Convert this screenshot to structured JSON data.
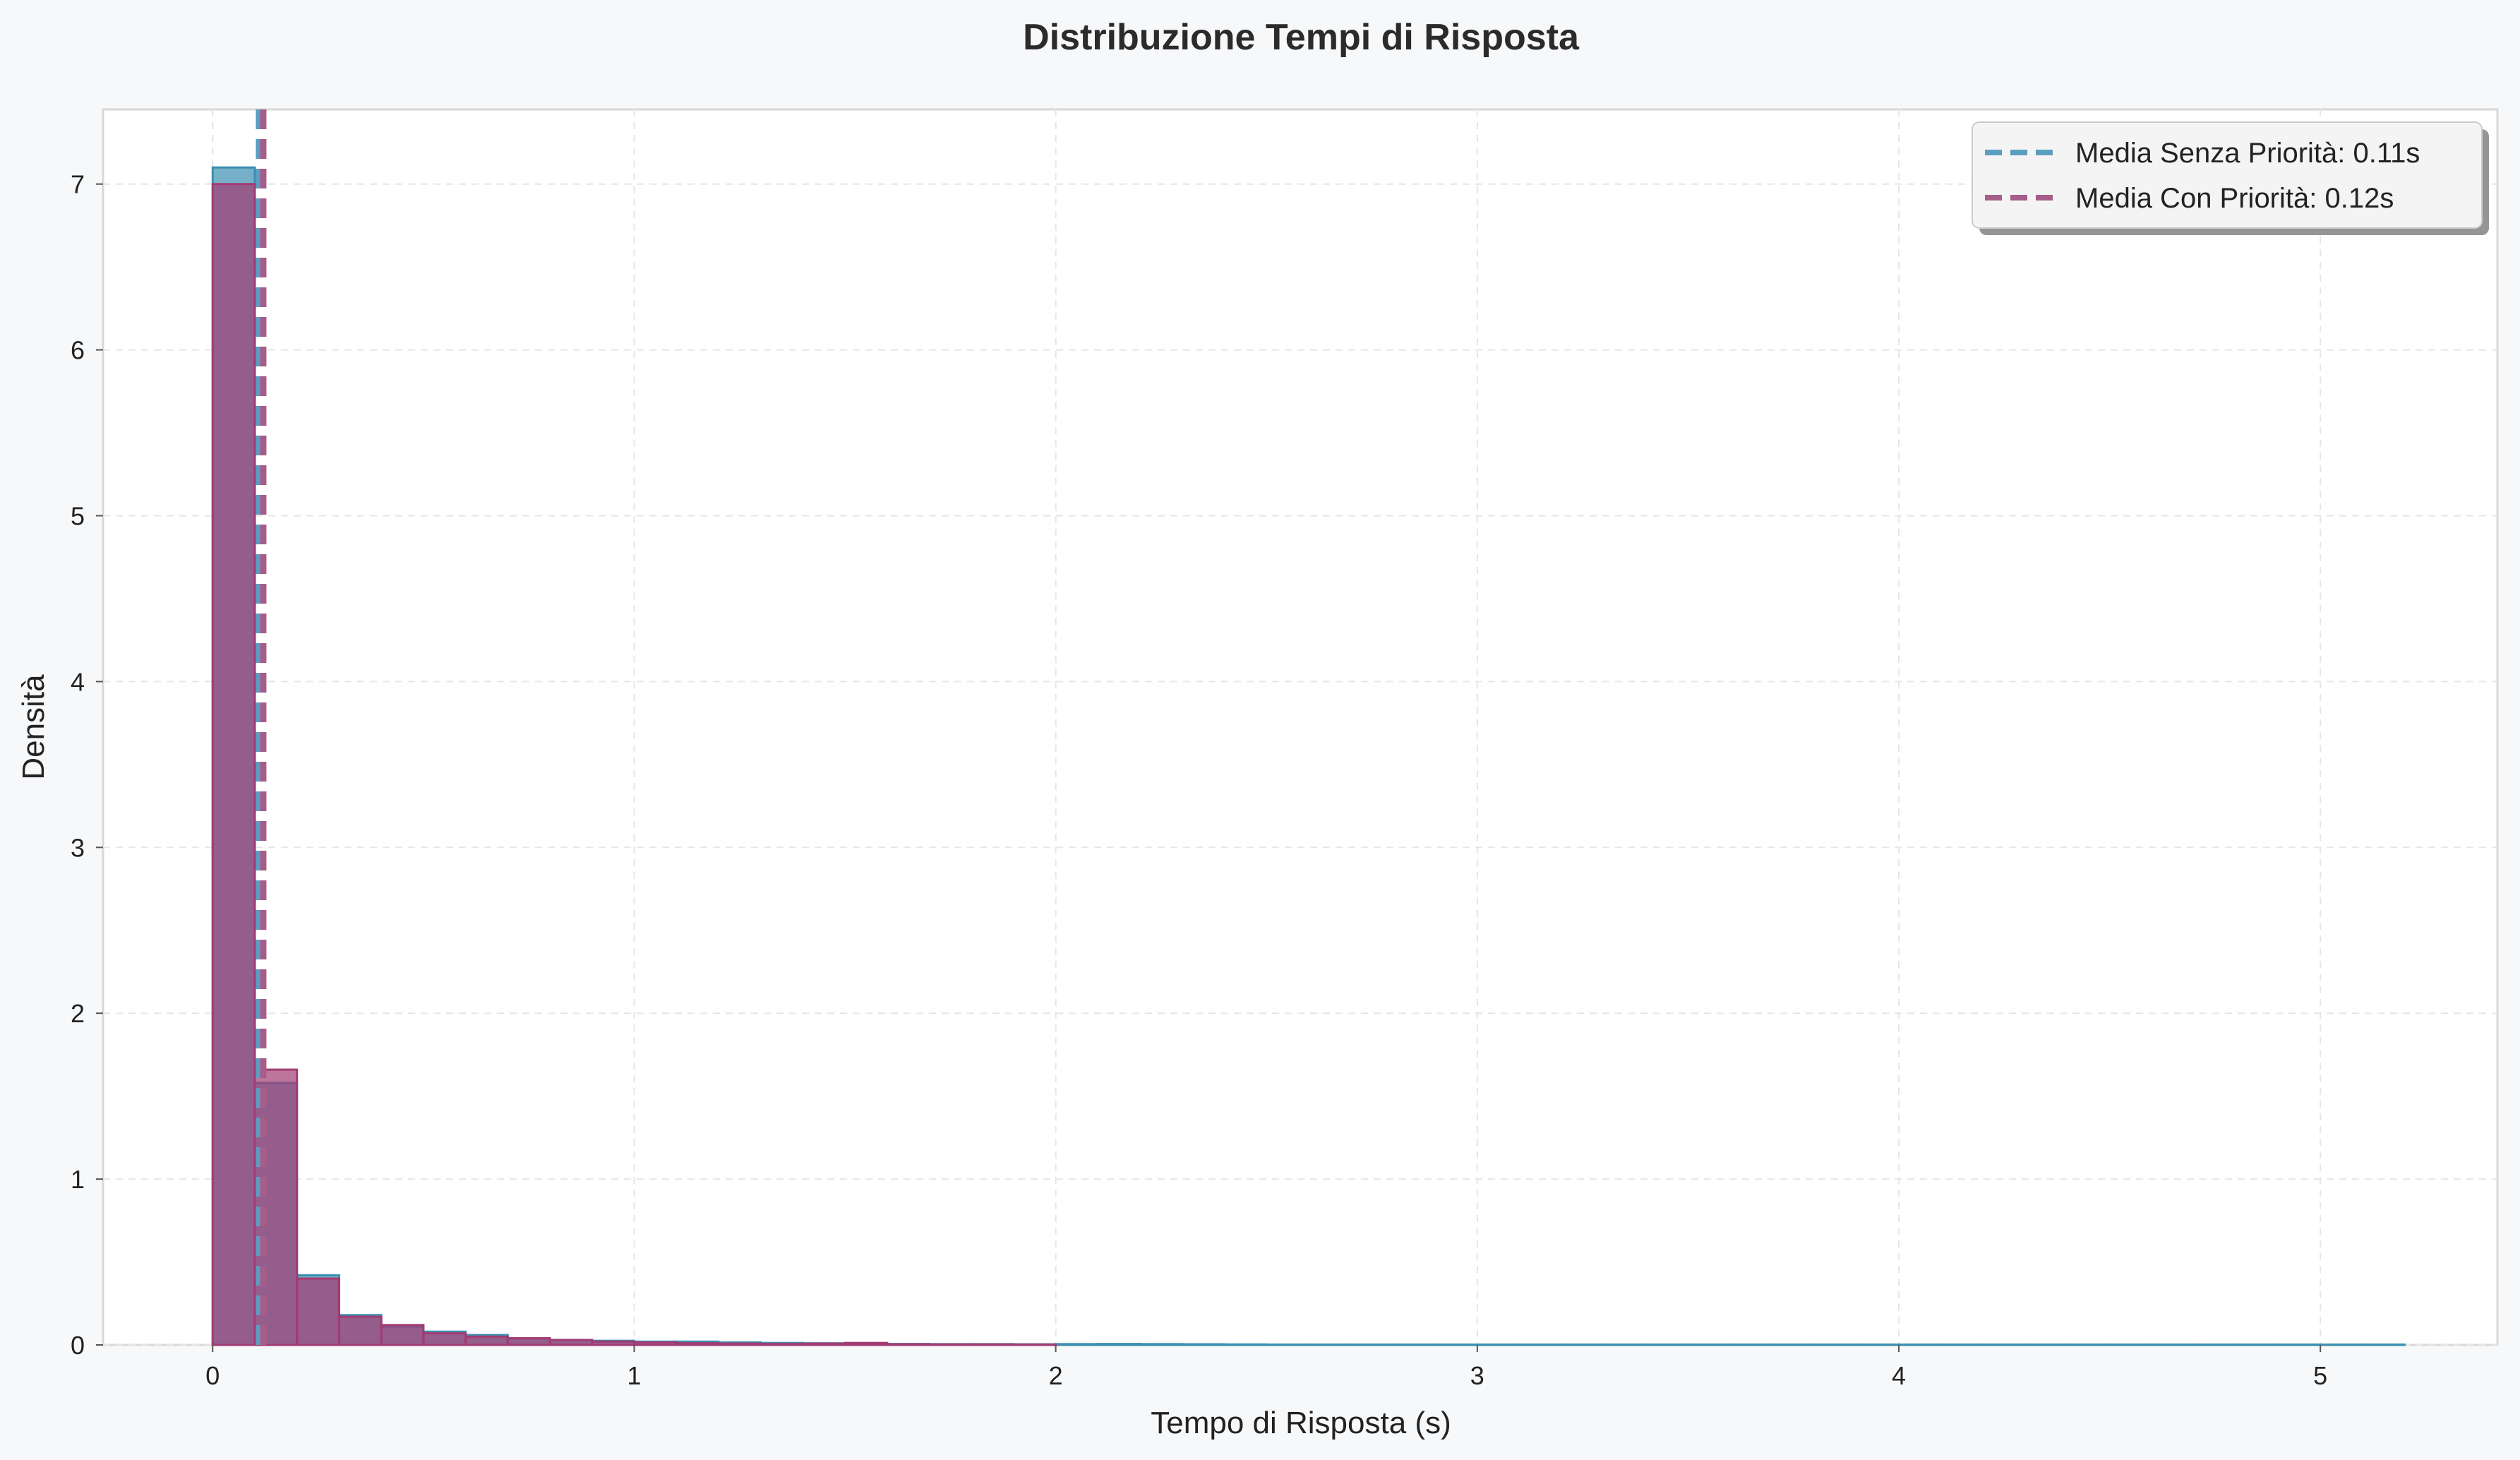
{
  "chart_data": {
    "type": "histogram",
    "title": "Distribuzione Tempi di Risposta",
    "xlabel": "Tempo di Risposta (s)",
    "ylabel": "Densità",
    "xlim": [
      -0.26,
      5.42
    ],
    "ylim": [
      0,
      7.45
    ],
    "x_ticks": [
      0,
      1,
      2,
      3,
      4,
      5
    ],
    "y_ticks": [
      0,
      1,
      2,
      3,
      4,
      5,
      6,
      7
    ],
    "grid": true,
    "legend_position": "top-right",
    "bin_width": 0.1,
    "series": [
      {
        "name": "Senza Priorità",
        "color": "#3b8eb0",
        "mean": 0.11,
        "bins_start": 0,
        "values": [
          7.1,
          1.58,
          0.42,
          0.18,
          0.11,
          0.08,
          0.06,
          0.04,
          0.03,
          0.025,
          0.02,
          0.02,
          0.015,
          0.012,
          0.01,
          0.008,
          0.006,
          0.005,
          0.005,
          0.004,
          0.005,
          0.006,
          0.005,
          0.004,
          0.003,
          0.002,
          0.002,
          0.002,
          0.002,
          0.002,
          0.002,
          0.002,
          0.002,
          0.002,
          0.002,
          0.002,
          0.002,
          0.002,
          0.002,
          0.002,
          0.002,
          0.002,
          0.002,
          0.002,
          0.002,
          0.002,
          0.002,
          0.002,
          0.002,
          0.002,
          0.002,
          0.002
        ]
      },
      {
        "name": "Con Priorità",
        "color": "#a23b72",
        "mean": 0.12,
        "bins_start": 0,
        "values": [
          7.0,
          1.66,
          0.4,
          0.17,
          0.12,
          0.07,
          0.05,
          0.04,
          0.03,
          0.02,
          0.015,
          0.01,
          0.008,
          0.006,
          0.008,
          0.012,
          0.004,
          0.003,
          0.003,
          0.002
        ]
      }
    ],
    "mean_lines": [
      {
        "label": "Media Senza Priorità: 0.11s",
        "value": 0.11,
        "color": "#5a9ec0"
      },
      {
        "label": "Media Con Priorità: 0.12s",
        "value": 0.12,
        "color": "#a65d8a"
      }
    ]
  }
}
